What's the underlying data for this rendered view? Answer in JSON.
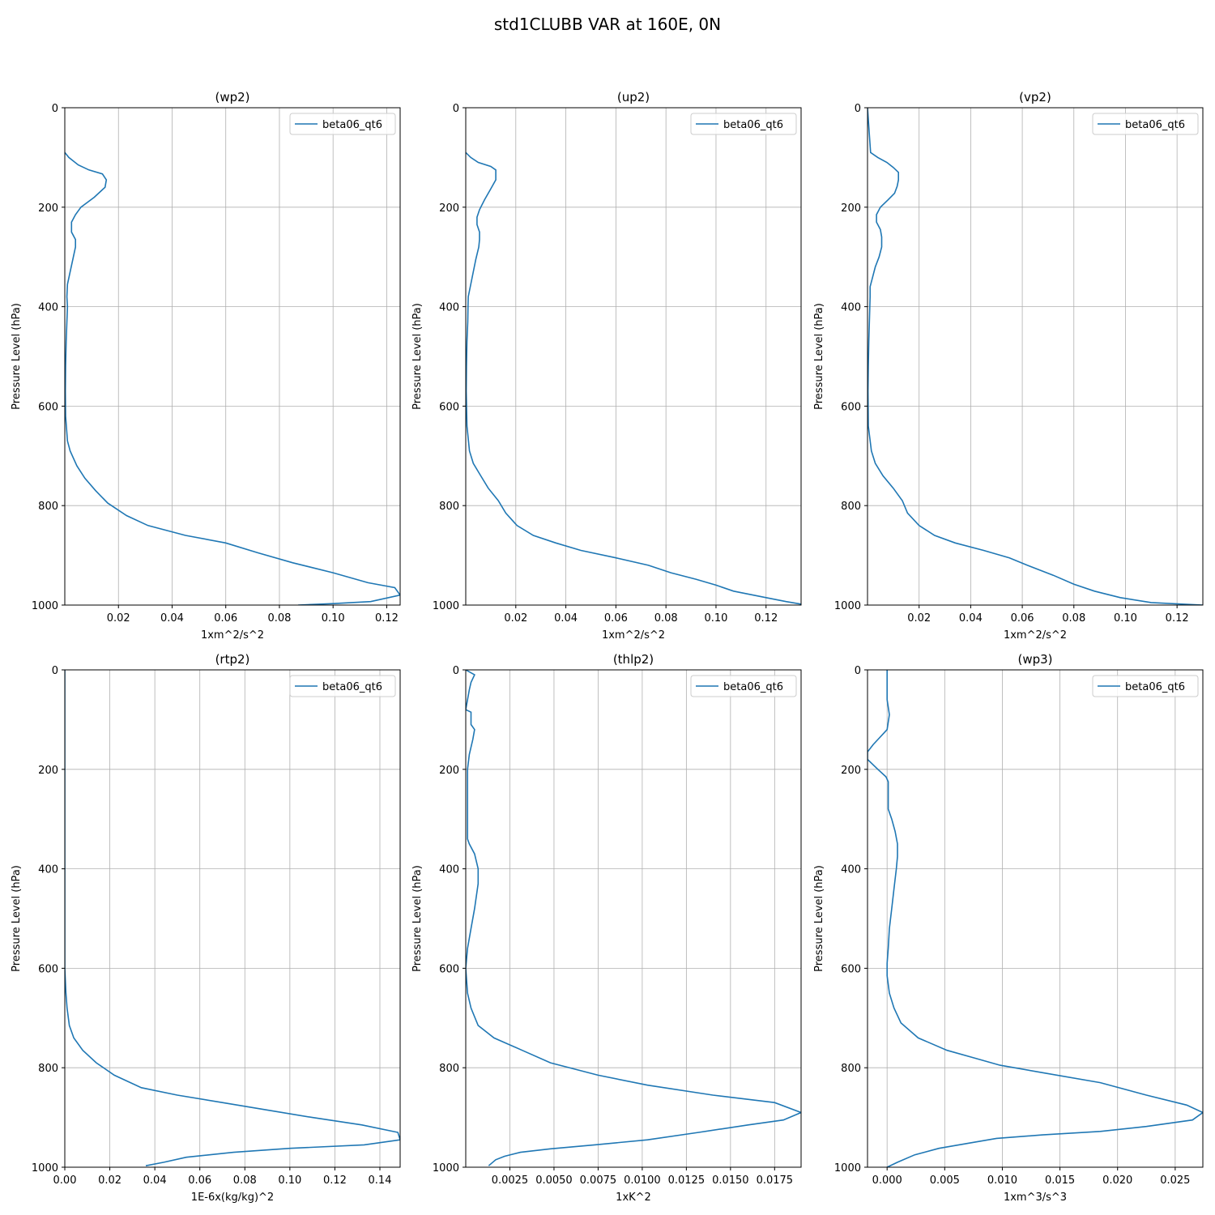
{
  "suptitle": "std1CLUBB VAR at 160E, 0N",
  "colors": {
    "series": "#1f77b4",
    "grid": "#b0b0b0"
  },
  "chart_data": [
    {
      "type": "line",
      "title": "(wp2)",
      "xlabel": "1xm^2/s^2",
      "ylabel": "Pressure Level (hPa)",
      "xlim": [
        0,
        0.125
      ],
      "ylim": [
        1000,
        0
      ],
      "xticks": [
        0.02,
        0.04,
        0.06,
        0.08,
        0.1,
        0.12
      ],
      "xtick_labels": [
        "0.02",
        "0.04",
        "0.06",
        "0.08",
        "0.10",
        "0.12"
      ],
      "yticks": [
        0,
        200,
        400,
        600,
        800,
        1000
      ],
      "ytick_labels": [
        "0",
        "200",
        "400",
        "600",
        "800",
        "1000"
      ],
      "grid": true,
      "legend": "top-right",
      "series": [
        {
          "name": "beta06_qt6",
          "x": [
            0,
            0.0015,
            0.005,
            0.009,
            0.014,
            0.0155,
            0.015,
            0.011,
            0.006,
            0.004,
            0.0025,
            0.0025,
            0.004,
            0.004,
            0.003,
            0.002,
            0.001,
            0.0008,
            0.001,
            0.0008,
            0.0005,
            0.0003,
            0.0002,
            0.0003,
            0.001,
            0.002,
            0.0045,
            0.0075,
            0.0115,
            0.016,
            0.023,
            0.031,
            0.045,
            0.06,
            0.072,
            0.085,
            0.1,
            0.113,
            0.123,
            0.125,
            0.114,
            0.1,
            0.087
          ],
          "y": [
            90,
            100,
            115,
            125,
            133,
            145,
            160,
            180,
            200,
            215,
            230,
            250,
            265,
            280,
            305,
            330,
            355,
            380,
            400,
            430,
            470,
            520,
            570,
            620,
            670,
            690,
            720,
            745,
            770,
            795,
            820,
            840,
            860,
            875,
            895,
            915,
            935,
            955,
            965,
            980,
            993,
            997,
            1000
          ]
        }
      ]
    },
    {
      "type": "line",
      "title": "(up2)",
      "xlabel": "1xm^2/s^2",
      "ylabel": "Pressure Level (hPa)",
      "xlim": [
        0,
        0.134
      ],
      "ylim": [
        1000,
        0
      ],
      "xticks": [
        0.02,
        0.04,
        0.06,
        0.08,
        0.1,
        0.12
      ],
      "xtick_labels": [
        "0.02",
        "0.04",
        "0.06",
        "0.08",
        "0.10",
        "0.12"
      ],
      "yticks": [
        0,
        200,
        400,
        600,
        800,
        1000
      ],
      "ytick_labels": [
        "0",
        "200",
        "400",
        "600",
        "800",
        "1000"
      ],
      "grid": true,
      "legend": "top-right",
      "series": [
        {
          "name": "beta06_qt6",
          "x": [
            0,
            0.002,
            0.005,
            0.01,
            0.012,
            0.012,
            0.01,
            0.0075,
            0.0055,
            0.0045,
            0.0045,
            0.0055,
            0.0055,
            0.0052,
            0.004,
            0.003,
            0.002,
            0.001,
            0.0009,
            0.0008,
            0.0005,
            0.0003,
            0.0002,
            0.0005,
            0.0015,
            0.003,
            0.006,
            0.009,
            0.013,
            0.016,
            0.0205,
            0.027,
            0.036,
            0.046,
            0.06,
            0.073,
            0.082,
            0.092,
            0.1,
            0.107,
            0.12,
            0.128,
            0.134
          ],
          "y": [
            90,
            100,
            110,
            118,
            125,
            145,
            163,
            185,
            205,
            220,
            235,
            250,
            265,
            280,
            305,
            330,
            355,
            380,
            400,
            430,
            470,
            520,
            570,
            640,
            690,
            715,
            740,
            765,
            790,
            815,
            840,
            860,
            875,
            890,
            905,
            920,
            935,
            948,
            960,
            972,
            985,
            993,
            998
          ]
        }
      ]
    },
    {
      "type": "line",
      "title": "(vp2)",
      "xlabel": "1xm^2/s^2",
      "ylabel": "Pressure Level (hPa)",
      "xlim": [
        0,
        0.13
      ],
      "ylim": [
        1000,
        0
      ],
      "xticks": [
        0.02,
        0.04,
        0.06,
        0.08,
        0.1,
        0.12
      ],
      "xtick_labels": [
        "0.02",
        "0.04",
        "0.06",
        "0.08",
        "0.10",
        "0.12"
      ],
      "yticks": [
        0,
        200,
        400,
        600,
        800,
        1000
      ],
      "ytick_labels": [
        "0",
        "200",
        "400",
        "600",
        "800",
        "1000"
      ],
      "grid": true,
      "legend": "top-right",
      "series": [
        {
          "name": "beta06_qt6",
          "x": [
            0,
            0.0012,
            0.004,
            0.0075,
            0.01,
            0.012,
            0.012,
            0.0115,
            0.0105,
            0.008,
            0.005,
            0.0035,
            0.0035,
            0.005,
            0.0055,
            0.0055,
            0.0045,
            0.003,
            0.002,
            0.001,
            0.001,
            0.0008,
            0.0005,
            0.0003,
            0.0002,
            0.0003,
            0.0015,
            0.003,
            0.006,
            0.01,
            0.0135,
            0.0155,
            0.02,
            0.026,
            0.034,
            0.045,
            0.055,
            0.062,
            0.072,
            0.08,
            0.088,
            0.098,
            0.11,
            0.13
          ],
          "y": [
            0,
            90,
            100,
            110,
            120,
            130,
            145,
            158,
            172,
            185,
            200,
            215,
            230,
            245,
            260,
            280,
            300,
            320,
            340,
            360,
            380,
            420,
            470,
            520,
            570,
            640,
            690,
            715,
            740,
            765,
            790,
            815,
            840,
            860,
            875,
            890,
            905,
            920,
            940,
            958,
            972,
            985,
            995,
            1000
          ]
        }
      ]
    },
    {
      "type": "line",
      "title": "(rtp2)",
      "xlabel": "1E-6x(kg/kg)^2",
      "ylabel": "Pressure Level (hPa)",
      "xlim": [
        0,
        0.149
      ],
      "ylim": [
        1000,
        0
      ],
      "xticks": [
        0.0,
        0.02,
        0.04,
        0.06,
        0.08,
        0.1,
        0.12,
        0.14
      ],
      "xtick_labels": [
        "0.00",
        "0.02",
        "0.04",
        "0.06",
        "0.08",
        "0.10",
        "0.12",
        "0.14"
      ],
      "yticks": [
        0,
        200,
        400,
        600,
        800,
        1000
      ],
      "ytick_labels": [
        "0",
        "200",
        "400",
        "600",
        "800",
        "1000"
      ],
      "grid": true,
      "legend": "top-right",
      "series": [
        {
          "name": "beta06_qt6",
          "x": [
            0,
            0,
            0,
            0,
            0,
            0.0005,
            0.001,
            0.002,
            0.004,
            0.008,
            0.014,
            0.022,
            0.034,
            0.05,
            0.07,
            0.09,
            0.11,
            0.132,
            0.148,
            0.149,
            0.133,
            0.1,
            0.075,
            0.054,
            0.044,
            0.036
          ],
          "y": [
            0,
            200,
            400,
            500,
            600,
            650,
            680,
            715,
            740,
            765,
            790,
            815,
            840,
            855,
            870,
            885,
            900,
            915,
            930,
            945,
            955,
            962,
            970,
            980,
            990,
            997
          ]
        }
      ]
    },
    {
      "type": "line",
      "title": "(thlp2)",
      "xlabel": "1xK^2",
      "ylabel": "Pressure Level (hPa)",
      "xlim": [
        0,
        0.019
      ],
      "ylim": [
        1000,
        0
      ],
      "xticks": [
        0.0025,
        0.005,
        0.0075,
        0.01,
        0.0125,
        0.015,
        0.0175
      ],
      "xtick_labels": [
        "0.0025",
        "0.0050",
        "0.0075",
        "0.0100",
        "0.0125",
        "0.0150",
        "0.0175"
      ],
      "yticks": [
        0,
        200,
        400,
        600,
        800,
        1000
      ],
      "ytick_labels": [
        "0",
        "200",
        "400",
        "600",
        "800",
        "1000"
      ],
      "grid": true,
      "legend": "top-right",
      "series": [
        {
          "name": "beta06_qt6",
          "x": [
            0,
            0.0005,
            0.0003,
            0.0002,
            0.0001,
            0.0,
            0.0003,
            0.0003,
            0.0005,
            0.0004,
            0.0002,
            0.0001,
            0.0001,
            0.0001,
            0.0001,
            0.0002,
            0.0005,
            0.0007,
            0.0007,
            0.0005,
            0.0003,
            0.0001,
            0.0,
            0.0001,
            0.0003,
            0.0007,
            0.0016,
            0.0032,
            0.0048,
            0.0075,
            0.0103,
            0.014,
            0.0175,
            0.019,
            0.018,
            0.016,
            0.0132,
            0.0103,
            0.0073,
            0.0048,
            0.0031,
            0.0022,
            0.0017,
            0.0013
          ],
          "y": [
            0,
            10,
            25,
            40,
            60,
            80,
            85,
            110,
            120,
            140,
            170,
            200,
            240,
            290,
            340,
            350,
            370,
            400,
            430,
            480,
            520,
            560,
            600,
            650,
            680,
            715,
            740,
            765,
            790,
            815,
            835,
            855,
            870,
            890,
            905,
            915,
            930,
            945,
            955,
            963,
            970,
            978,
            985,
            997
          ]
        }
      ]
    },
    {
      "type": "line",
      "title": "(wp3)",
      "xlabel": "1xm^3/s^3",
      "ylabel": "Pressure Level (hPa)",
      "xlim": [
        -0.0017,
        0.0274
      ],
      "ylim": [
        1000,
        0
      ],
      "xticks": [
        0.0,
        0.005,
        0.01,
        0.015,
        0.02,
        0.025
      ],
      "xtick_labels": [
        "0.000",
        "0.005",
        "0.010",
        "0.015",
        "0.020",
        "0.025"
      ],
      "yticks": [
        0,
        200,
        400,
        600,
        800,
        1000
      ],
      "ytick_labels": [
        "0",
        "200",
        "400",
        "600",
        "800",
        "1000"
      ],
      "grid": true,
      "legend": "top-right",
      "series": [
        {
          "name": "beta06_qt6",
          "x": [
            0.0,
            0.0,
            0.0,
            0.0002,
            0.0,
            -0.0008,
            -0.0012,
            -0.0017,
            -0.0017,
            -0.0008,
            -0.0001,
            0.0001,
            0.0001,
            0.0001,
            0.0001,
            0.0004,
            0.0007,
            0.0009,
            0.0009,
            0.0008,
            0.0006,
            0.0004,
            0.0002,
            0.0001,
            0.0,
            0.0,
            0.0002,
            0.0006,
            0.0012,
            0.0027,
            0.0052,
            0.0075,
            0.0098,
            0.0135,
            0.0185,
            0.0225,
            0.026,
            0.0274,
            0.0265,
            0.0225,
            0.0185,
            0.0135,
            0.0095,
            0.0075,
            0.0045,
            0.0024,
            0.0009,
            0.0
          ],
          "y": [
            0,
            30,
            60,
            90,
            120,
            140,
            150,
            165,
            180,
            200,
            215,
            225,
            240,
            260,
            280,
            300,
            325,
            350,
            375,
            400,
            440,
            480,
            520,
            560,
            590,
            615,
            650,
            680,
            710,
            740,
            765,
            780,
            795,
            810,
            830,
            855,
            875,
            890,
            905,
            918,
            928,
            935,
            942,
            950,
            962,
            975,
            990,
            1000
          ]
        }
      ]
    }
  ]
}
